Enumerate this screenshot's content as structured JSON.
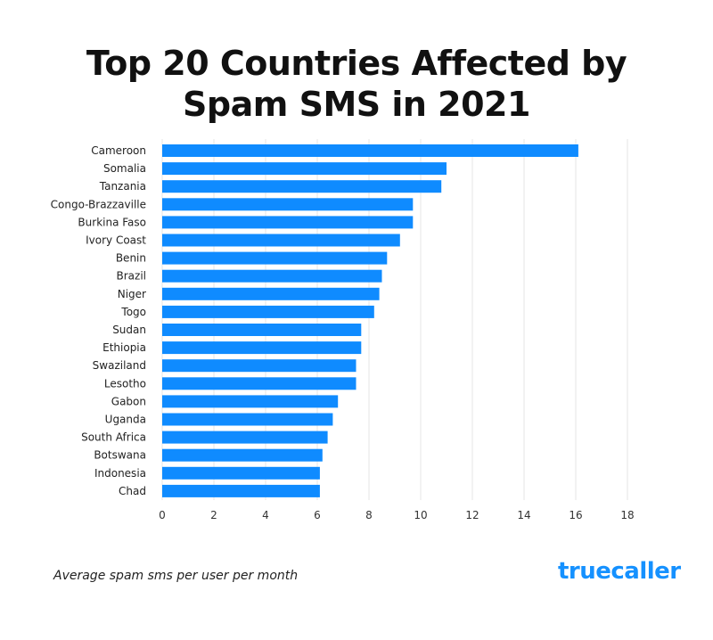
{
  "title_line1": "Top 20 Countries Affected by",
  "title_line2": "Spam SMS in 2021",
  "footnote": "Average spam sms per user per month",
  "logo_text": "truecaller",
  "colors": {
    "bar": "#0f8bff",
    "grid": "#e6e6e6",
    "logo": "#1591ff"
  },
  "chart_data": {
    "type": "bar",
    "orientation": "horizontal",
    "categories": [
      "Cameroon",
      "Somalia",
      "Tanzania",
      "Congo-Brazzaville",
      "Burkina Faso",
      "Ivory Coast",
      "Benin",
      "Brazil",
      "Niger",
      "Togo",
      "Sudan",
      "Ethiopia",
      "Swaziland",
      "Lesotho",
      "Gabon",
      "Uganda",
      "South Africa",
      "Botswana",
      "Indonesia",
      "Chad"
    ],
    "values": [
      16.1,
      11.0,
      10.8,
      9.7,
      9.7,
      9.2,
      8.7,
      8.5,
      8.4,
      8.2,
      7.7,
      7.7,
      7.5,
      7.5,
      6.8,
      6.6,
      6.4,
      6.2,
      6.1,
      6.1
    ],
    "xticks": [
      0,
      2,
      4,
      6,
      8,
      10,
      12,
      14,
      16,
      18
    ],
    "xlim": [
      0,
      18
    ],
    "grid": true
  }
}
